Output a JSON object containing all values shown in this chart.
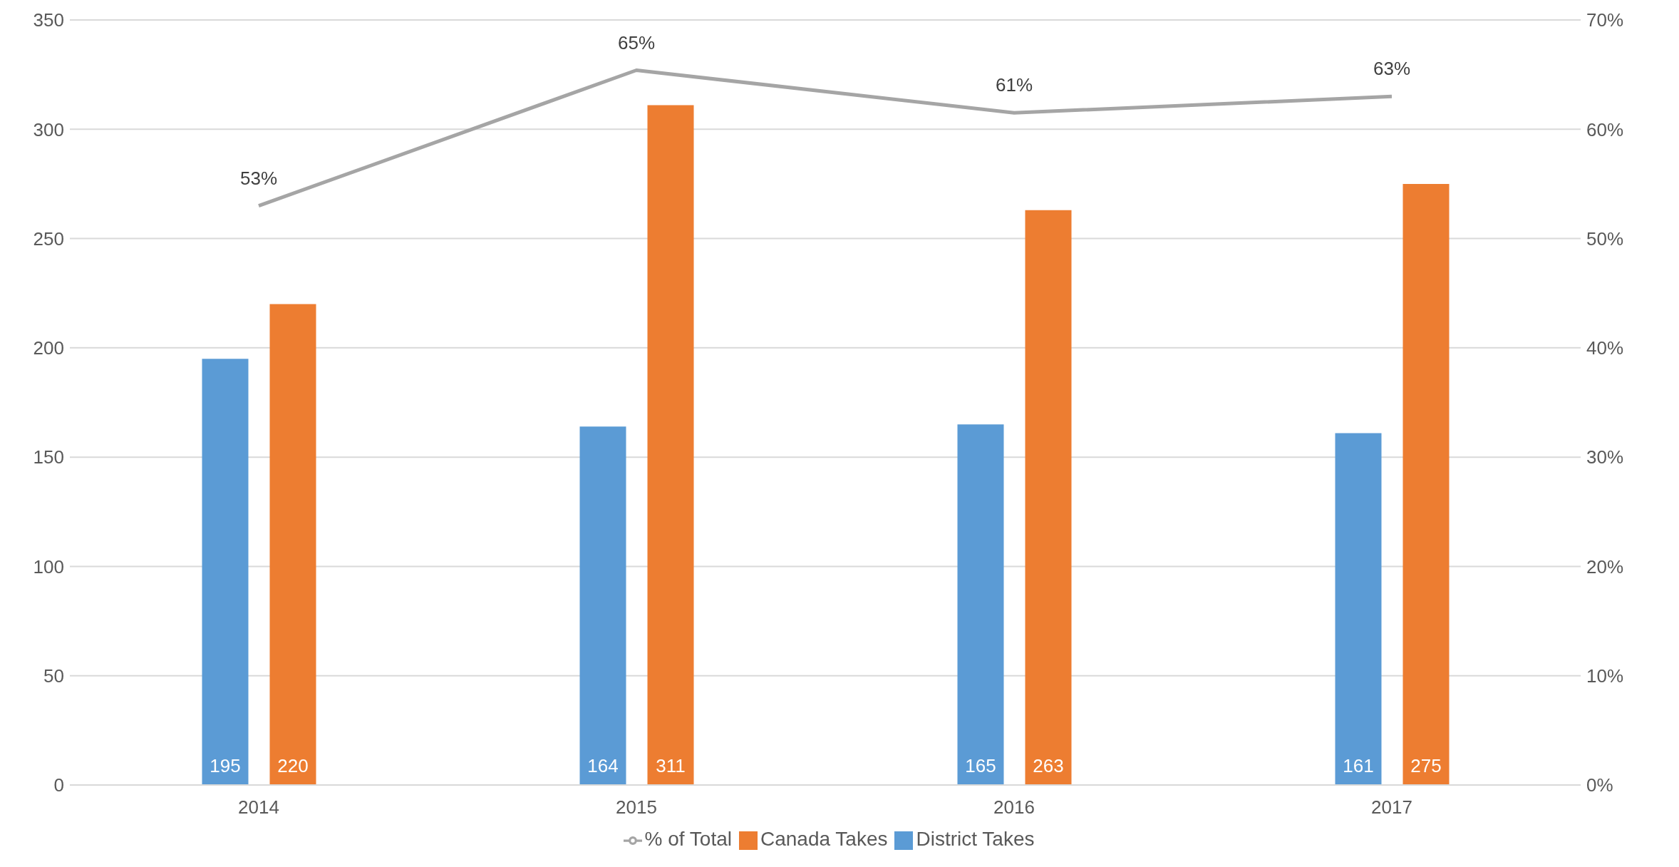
{
  "chart_data": {
    "type": "bar",
    "categories": [
      "2014",
      "2015",
      "2016",
      "2017"
    ],
    "series": [
      {
        "name": "District Takes",
        "color": "#5b9bd5",
        "values": [
          195,
          164,
          165,
          161
        ],
        "value_labels": [
          "195",
          "164",
          "165",
          "161"
        ]
      },
      {
        "name": "Canada Takes",
        "color": "#ed7d31",
        "values": [
          220,
          311,
          263,
          275
        ],
        "value_labels": [
          "220",
          "311",
          "263",
          "275"
        ]
      },
      {
        "name": "% of Total",
        "type": "line",
        "axis": "y2",
        "color": "#a5a5a5",
        "values": [
          53,
          65.4,
          61.5,
          63
        ],
        "value_labels": [
          "53%",
          "65%",
          "61%",
          "63%"
        ]
      }
    ],
    "ylim": [
      0,
      350
    ],
    "yticks": [
      0,
      50,
      100,
      150,
      200,
      250,
      300,
      350
    ],
    "y2lim": [
      0,
      70
    ],
    "y2ticks": [
      {
        "value": 0,
        "label": "0%"
      },
      {
        "value": 10,
        "label": "10%"
      },
      {
        "value": 20,
        "label": "20%"
      },
      {
        "value": 30,
        "label": "30%"
      },
      {
        "value": 40,
        "label": "40%"
      },
      {
        "value": 50,
        "label": "50%"
      },
      {
        "value": 60,
        "label": "60%"
      },
      {
        "value": 70,
        "label": "70%"
      }
    ],
    "grid": "y",
    "legend": "bottom",
    "marker": "none",
    "line_style": "solid"
  }
}
